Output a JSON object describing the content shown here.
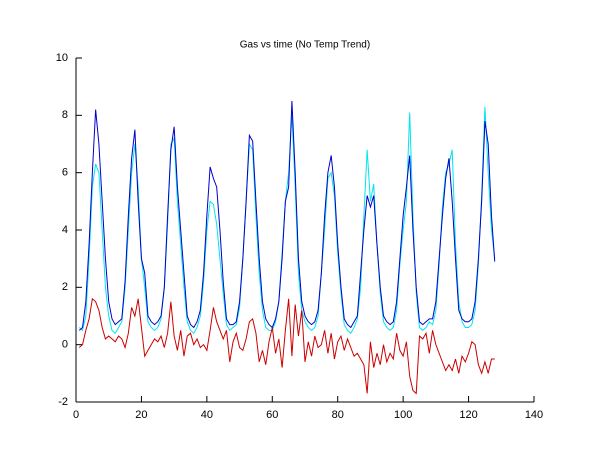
{
  "chart_data": {
    "type": "line",
    "title": "Gas vs time (No Temp Trend)",
    "x": [
      1,
      2,
      3,
      4,
      5,
      6,
      7,
      8,
      9,
      10,
      11,
      12,
      13,
      14,
      15,
      16,
      17,
      18,
      19,
      20,
      21,
      22,
      23,
      24,
      25,
      26,
      27,
      28,
      29,
      30,
      31,
      32,
      33,
      34,
      35,
      36,
      37,
      38,
      39,
      40,
      41,
      42,
      43,
      44,
      45,
      46,
      47,
      48,
      49,
      50,
      51,
      52,
      53,
      54,
      55,
      56,
      57,
      58,
      59,
      60,
      61,
      62,
      63,
      64,
      65,
      66,
      67,
      68,
      69,
      70,
      71,
      72,
      73,
      74,
      75,
      76,
      77,
      78,
      79,
      80,
      81,
      82,
      83,
      84,
      85,
      86,
      87,
      88,
      89,
      90,
      91,
      92,
      93,
      94,
      95,
      96,
      97,
      98,
      99,
      100,
      101,
      102,
      103,
      104,
      105,
      106,
      107,
      108,
      109,
      110,
      111,
      112,
      113,
      114,
      115,
      116,
      117,
      118,
      119,
      120,
      121,
      122,
      123,
      124,
      125,
      126,
      127,
      128
    ],
    "series": [
      {
        "color": "#00e5ee",
        "values": [
          0.6,
          0.5,
          1.0,
          3.0,
          5.5,
          6.3,
          6.0,
          4.0,
          2.0,
          1.0,
          0.5,
          0.4,
          0.6,
          0.8,
          2.0,
          4.0,
          6.0,
          7.0,
          5.5,
          3.0,
          2.0,
          0.8,
          0.6,
          0.5,
          0.6,
          0.9,
          2.0,
          4.2,
          7.0,
          7.2,
          5.0,
          3.5,
          2.0,
          0.8,
          0.5,
          0.4,
          0.6,
          1.0,
          2.2,
          4.0,
          5.0,
          4.9,
          4.2,
          3.0,
          1.8,
          0.7,
          0.5,
          0.6,
          0.7,
          1.3,
          3.0,
          5.0,
          7.0,
          6.8,
          4.5,
          2.5,
          1.2,
          0.6,
          0.5,
          0.5,
          0.8,
          1.5,
          3.2,
          5.0,
          6.0,
          8.0,
          5.5,
          2.5,
          1.2,
          0.8,
          0.6,
          0.5,
          0.6,
          1.0,
          2.5,
          4.0,
          5.8,
          6.0,
          5.2,
          3.2,
          1.8,
          0.7,
          0.5,
          0.4,
          0.6,
          0.9,
          2.0,
          4.5,
          6.8,
          5.0,
          5.6,
          3.5,
          1.8,
          0.8,
          0.6,
          0.5,
          0.6,
          1.2,
          2.8,
          4.0,
          5.0,
          8.1,
          4.5,
          1.8,
          0.6,
          0.5,
          0.6,
          0.8,
          0.7,
          1.2,
          2.8,
          4.8,
          6.0,
          6.3,
          6.8,
          3.5,
          1.5,
          0.8,
          0.6,
          0.6,
          0.7,
          1.2,
          2.8,
          5.2,
          8.3,
          6.0,
          4.0,
          3.0
        ]
      },
      {
        "color": "#0000cc",
        "values": [
          0.5,
          0.6,
          1.5,
          3.5,
          6.0,
          8.2,
          7.0,
          5.0,
          3.0,
          1.5,
          0.9,
          0.7,
          0.8,
          0.9,
          2.2,
          4.5,
          6.5,
          7.5,
          5.0,
          3.0,
          2.5,
          1.0,
          0.8,
          0.7,
          0.8,
          1.0,
          2.0,
          4.5,
          6.8,
          7.6,
          5.5,
          4.0,
          2.5,
          1.0,
          0.7,
          0.6,
          0.8,
          1.2,
          2.5,
          4.5,
          6.2,
          5.8,
          5.5,
          4.0,
          2.2,
          0.9,
          0.7,
          0.7,
          0.8,
          1.5,
          3.0,
          5.0,
          7.3,
          7.1,
          5.0,
          3.0,
          1.5,
          0.9,
          0.7,
          0.6,
          0.9,
          1.5,
          3.0,
          5.0,
          5.5,
          8.5,
          6.0,
          3.0,
          1.5,
          1.0,
          0.8,
          0.7,
          0.8,
          1.2,
          2.5,
          4.5,
          6.0,
          6.6,
          5.5,
          3.5,
          2.0,
          0.9,
          0.7,
          0.6,
          0.8,
          1.0,
          2.5,
          4.0,
          5.2,
          4.8,
          5.2,
          3.5,
          2.0,
          1.0,
          0.8,
          0.7,
          0.8,
          1.5,
          3.0,
          4.5,
          5.5,
          6.6,
          4.0,
          2.0,
          0.8,
          0.7,
          0.8,
          0.9,
          0.9,
          1.5,
          3.0,
          4.5,
          5.8,
          6.5,
          5.0,
          3.0,
          1.2,
          0.9,
          0.8,
          0.8,
          0.9,
          1.5,
          3.0,
          5.0,
          7.8,
          7.0,
          4.5,
          2.9
        ]
      },
      {
        "color": "#cc0000",
        "values": [
          -0.1,
          0.0,
          0.5,
          0.9,
          1.6,
          1.5,
          1.2,
          0.6,
          0.2,
          0.3,
          0.2,
          0.1,
          0.3,
          0.2,
          -0.1,
          0.4,
          1.3,
          1.0,
          1.6,
          0.6,
          -0.4,
          -0.2,
          0.0,
          0.2,
          0.1,
          0.3,
          -0.1,
          0.4,
          1.5,
          0.3,
          -0.2,
          0.5,
          -0.4,
          0.3,
          0.4,
          0.0,
          0.2,
          -0.1,
          0.0,
          -0.2,
          0.5,
          1.3,
          0.8,
          0.5,
          0.2,
          0.5,
          -0.6,
          0.1,
          0.4,
          -0.1,
          -0.2,
          0.2,
          0.8,
          0.9,
          0.4,
          -0.6,
          -0.2,
          -0.7,
          0.1,
          0.6,
          -0.3,
          0.2,
          -0.8,
          0.5,
          1.6,
          -0.4,
          1.4,
          0.3,
          1.2,
          -0.6,
          0.1,
          -0.4,
          0.3,
          -0.1,
          0.0,
          0.5,
          -0.3,
          0.4,
          -0.5,
          0.1,
          0.3,
          -0.2,
          0.2,
          -0.1,
          -0.4,
          -0.3,
          -0.5,
          -0.7,
          -1.7,
          0.1,
          -0.8,
          -0.3,
          -0.7,
          0.0,
          -0.6,
          -0.3,
          -0.5,
          0.4,
          -0.2,
          -0.4,
          0.1,
          -1.1,
          -1.6,
          -1.7,
          0.3,
          0.2,
          0.4,
          -0.3,
          0.5,
          0.0,
          -0.3,
          -0.6,
          -0.9,
          -0.7,
          -0.9,
          -0.5,
          -1.0,
          -0.4,
          -0.6,
          -0.3,
          0.1,
          0.0,
          -0.7,
          -1.0,
          -0.6,
          -1.0,
          -0.5,
          -0.5
        ]
      }
    ],
    "xlim": [
      0,
      140
    ],
    "xticks": [
      0,
      20,
      40,
      60,
      80,
      100,
      120,
      140
    ],
    "ylim": [
      -2,
      10
    ],
    "yticks": [
      -2,
      0,
      2,
      4,
      6,
      8,
      10
    ]
  }
}
